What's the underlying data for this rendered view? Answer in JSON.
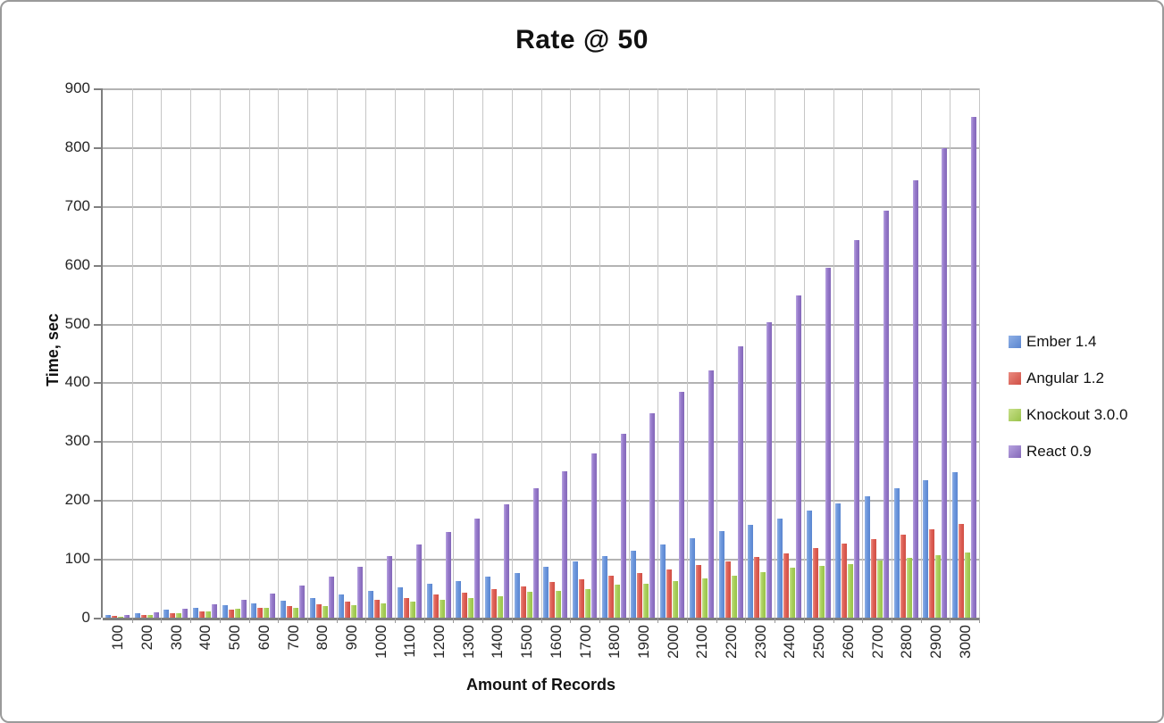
{
  "chart_data": {
    "type": "bar",
    "title": "Rate @ 50",
    "xlabel": "Amount of Records",
    "ylabel": "Time, sec",
    "ylim": [
      0,
      900
    ],
    "y_tick_step": 100,
    "grid": "horizontal and vertical category boundaries",
    "legend_position": "right",
    "categories": [
      100,
      200,
      300,
      400,
      500,
      600,
      700,
      800,
      900,
      1000,
      1100,
      1200,
      1300,
      1400,
      1500,
      1600,
      1700,
      1800,
      1900,
      2000,
      2100,
      2200,
      2300,
      2400,
      2500,
      2600,
      2700,
      2800,
      2900,
      3000
    ],
    "series": [
      {
        "name": "Ember 1.4",
        "color": "#6b96dc",
        "values": [
          4,
          8,
          13,
          16,
          21,
          25,
          29,
          34,
          39,
          45,
          51,
          57,
          63,
          70,
          76,
          86,
          95,
          104,
          114,
          124,
          135,
          147,
          158,
          169,
          182,
          194,
          207,
          220,
          233,
          247
        ]
      },
      {
        "name": "Angular 1.2",
        "color": "#dd5f55",
        "values": [
          3,
          5,
          7,
          10,
          14,
          16,
          19,
          23,
          28,
          30,
          34,
          39,
          42,
          48,
          53,
          60,
          65,
          71,
          76,
          82,
          90,
          96,
          103,
          110,
          118,
          126,
          134,
          141,
          151,
          160
        ]
      },
      {
        "name": "Knockout 3.0.0",
        "color": "#a8cf5a",
        "values": [
          2,
          5,
          8,
          11,
          15,
          16,
          17,
          20,
          21,
          24,
          27,
          30,
          33,
          37,
          44,
          46,
          49,
          56,
          58,
          62,
          67,
          72,
          77,
          85,
          88,
          91,
          97,
          102,
          106,
          111
        ]
      },
      {
        "name": "React 0.9",
        "color": "#9477c9",
        "values": [
          4,
          9,
          15,
          23,
          31,
          41,
          54,
          70,
          86,
          104,
          124,
          146,
          168,
          193,
          220,
          249,
          279,
          313,
          347,
          384,
          421,
          462,
          503,
          548,
          595,
          642,
          692,
          744,
          798,
          852
        ]
      }
    ]
  }
}
